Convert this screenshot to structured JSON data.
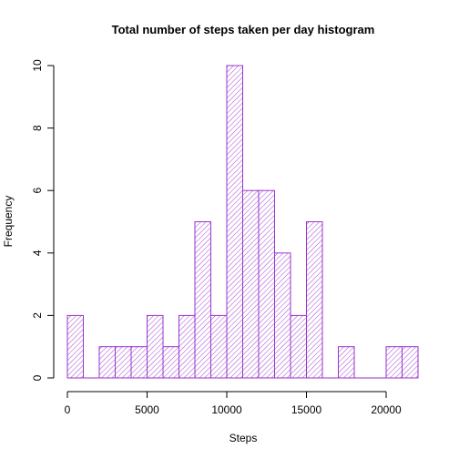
{
  "chart_data": {
    "type": "bar",
    "subtype": "histogram",
    "title": "Total number of steps taken per day histogram",
    "xlabel": "Steps",
    "ylabel": "Frequency",
    "xlim": [
      0,
      22000
    ],
    "ylim": [
      0,
      10
    ],
    "x_ticks": [
      0,
      5000,
      10000,
      15000,
      20000
    ],
    "y_ticks": [
      0,
      2,
      4,
      6,
      8,
      10
    ],
    "bin_width": 1000,
    "bins": [
      {
        "start": 0,
        "end": 1000,
        "value": 2
      },
      {
        "start": 1000,
        "end": 2000,
        "value": 0
      },
      {
        "start": 2000,
        "end": 3000,
        "value": 1
      },
      {
        "start": 3000,
        "end": 4000,
        "value": 1
      },
      {
        "start": 4000,
        "end": 5000,
        "value": 1
      },
      {
        "start": 5000,
        "end": 6000,
        "value": 2
      },
      {
        "start": 6000,
        "end": 7000,
        "value": 1
      },
      {
        "start": 7000,
        "end": 8000,
        "value": 2
      },
      {
        "start": 8000,
        "end": 9000,
        "value": 5
      },
      {
        "start": 9000,
        "end": 10000,
        "value": 2
      },
      {
        "start": 10000,
        "end": 11000,
        "value": 10
      },
      {
        "start": 11000,
        "end": 12000,
        "value": 6
      },
      {
        "start": 12000,
        "end": 13000,
        "value": 6
      },
      {
        "start": 13000,
        "end": 14000,
        "value": 4
      },
      {
        "start": 14000,
        "end": 15000,
        "value": 2
      },
      {
        "start": 15000,
        "end": 16000,
        "value": 5
      },
      {
        "start": 16000,
        "end": 17000,
        "value": 0
      },
      {
        "start": 17000,
        "end": 18000,
        "value": 1
      },
      {
        "start": 18000,
        "end": 19000,
        "value": 0
      },
      {
        "start": 19000,
        "end": 20000,
        "value": 0
      },
      {
        "start": 20000,
        "end": 21000,
        "value": 1
      },
      {
        "start": 21000,
        "end": 22000,
        "value": 1
      }
    ],
    "bar_color": "#9a32cd",
    "fill": "diagonal-hatch",
    "grid": false,
    "legend": "none"
  }
}
